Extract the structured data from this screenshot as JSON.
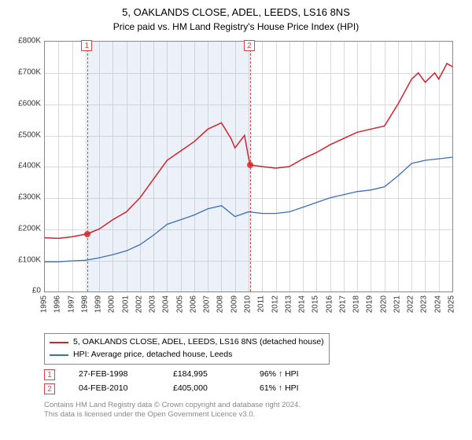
{
  "title": "5, OAKLANDS CLOSE, ADEL, LEEDS, LS16 8NS",
  "subtitle": "Price paid vs. HM Land Registry's House Price Index (HPI)",
  "chart": {
    "type": "line",
    "background_color": "#ffffff",
    "grid_color": "#d9d9d9",
    "border_color": "#888888",
    "x": {
      "min": 1995,
      "max": 2025,
      "ticks": [
        1995,
        1996,
        1997,
        1998,
        1999,
        2000,
        2001,
        2002,
        2003,
        2004,
        2005,
        2006,
        2007,
        2008,
        2009,
        2010,
        2011,
        2012,
        2013,
        2014,
        2015,
        2016,
        2017,
        2018,
        2019,
        2020,
        2021,
        2022,
        2023,
        2024,
        2025
      ],
      "label_fontsize": 10,
      "rotation": -90
    },
    "y": {
      "min": 0,
      "max": 800000,
      "ticks": [
        0,
        100000,
        200000,
        300000,
        400000,
        500000,
        600000,
        700000,
        800000
      ],
      "tick_labels": [
        "£0",
        "£100K",
        "£200K",
        "£300K",
        "£400K",
        "£500K",
        "£600K",
        "£700K",
        "£800K"
      ],
      "label_fontsize": 10
    },
    "shaded_band": {
      "from": 1998.15,
      "to": 2010.1,
      "color": "rgba(180,200,230,0.25)"
    },
    "events": [
      {
        "n": "1",
        "x": 1998.15,
        "marker_y": 184995,
        "line_color": "#d94545",
        "marker_color": "#d94545"
      },
      {
        "n": "2",
        "x": 2010.1,
        "marker_y": 405000,
        "line_color": "#d94545",
        "marker_color": "#d94545"
      }
    ],
    "series": [
      {
        "name": "property",
        "label": "5, OAKLANDS CLOSE, ADEL, LEEDS, LS16 8NS (detached house)",
        "color": "#d2232a",
        "line_width": 1.5,
        "points": [
          [
            1995,
            172000
          ],
          [
            1996,
            170000
          ],
          [
            1997,
            175000
          ],
          [
            1998.15,
            184995
          ],
          [
            1999,
            200000
          ],
          [
            2000,
            230000
          ],
          [
            2001,
            255000
          ],
          [
            2002,
            300000
          ],
          [
            2003,
            360000
          ],
          [
            2004,
            420000
          ],
          [
            2005,
            450000
          ],
          [
            2006,
            480000
          ],
          [
            2007,
            520000
          ],
          [
            2008,
            540000
          ],
          [
            2008.7,
            490000
          ],
          [
            2009,
            460000
          ],
          [
            2009.7,
            500000
          ],
          [
            2010.1,
            405000
          ],
          [
            2011,
            400000
          ],
          [
            2012,
            395000
          ],
          [
            2013,
            400000
          ],
          [
            2014,
            425000
          ],
          [
            2015,
            445000
          ],
          [
            2016,
            470000
          ],
          [
            2017,
            490000
          ],
          [
            2018,
            510000
          ],
          [
            2019,
            520000
          ],
          [
            2020,
            530000
          ],
          [
            2021,
            600000
          ],
          [
            2022,
            680000
          ],
          [
            2022.5,
            700000
          ],
          [
            2023,
            670000
          ],
          [
            2023.7,
            700000
          ],
          [
            2024,
            680000
          ],
          [
            2024.6,
            730000
          ],
          [
            2025,
            720000
          ]
        ]
      },
      {
        "name": "hpi",
        "label": "HPI: Average price, detached house, Leeds",
        "color": "#3b6fb6",
        "line_width": 1.3,
        "points": [
          [
            1995,
            95000
          ],
          [
            1996,
            95000
          ],
          [
            1997,
            98000
          ],
          [
            1998,
            100000
          ],
          [
            1999,
            108000
          ],
          [
            2000,
            118000
          ],
          [
            2001,
            130000
          ],
          [
            2002,
            150000
          ],
          [
            2003,
            180000
          ],
          [
            2004,
            215000
          ],
          [
            2005,
            230000
          ],
          [
            2006,
            245000
          ],
          [
            2007,
            265000
          ],
          [
            2008,
            275000
          ],
          [
            2009,
            240000
          ],
          [
            2010,
            255000
          ],
          [
            2011,
            250000
          ],
          [
            2012,
            250000
          ],
          [
            2013,
            255000
          ],
          [
            2014,
            270000
          ],
          [
            2015,
            285000
          ],
          [
            2016,
            300000
          ],
          [
            2017,
            310000
          ],
          [
            2018,
            320000
          ],
          [
            2019,
            325000
          ],
          [
            2020,
            335000
          ],
          [
            2021,
            370000
          ],
          [
            2022,
            410000
          ],
          [
            2023,
            420000
          ],
          [
            2024,
            425000
          ],
          [
            2025,
            430000
          ]
        ]
      }
    ]
  },
  "legend": {
    "items": [
      {
        "color": "#d2232a",
        "label": "5, OAKLANDS CLOSE, ADEL, LEEDS, LS16 8NS (detached house)"
      },
      {
        "color": "#3b6fb6",
        "label": "HPI: Average price, detached house, Leeds"
      }
    ]
  },
  "event_rows": [
    {
      "n": "1",
      "date": "27-FEB-1998",
      "price": "£184,995",
      "hpi": "96% ↑ HPI"
    },
    {
      "n": "2",
      "date": "04-FEB-2010",
      "price": "£405,000",
      "hpi": "61% ↑ HPI"
    }
  ],
  "footnote": {
    "line1": "Contains HM Land Registry data © Crown copyright and database right 2024.",
    "line2": "This data is licensed under the Open Government Licence v3.0."
  }
}
